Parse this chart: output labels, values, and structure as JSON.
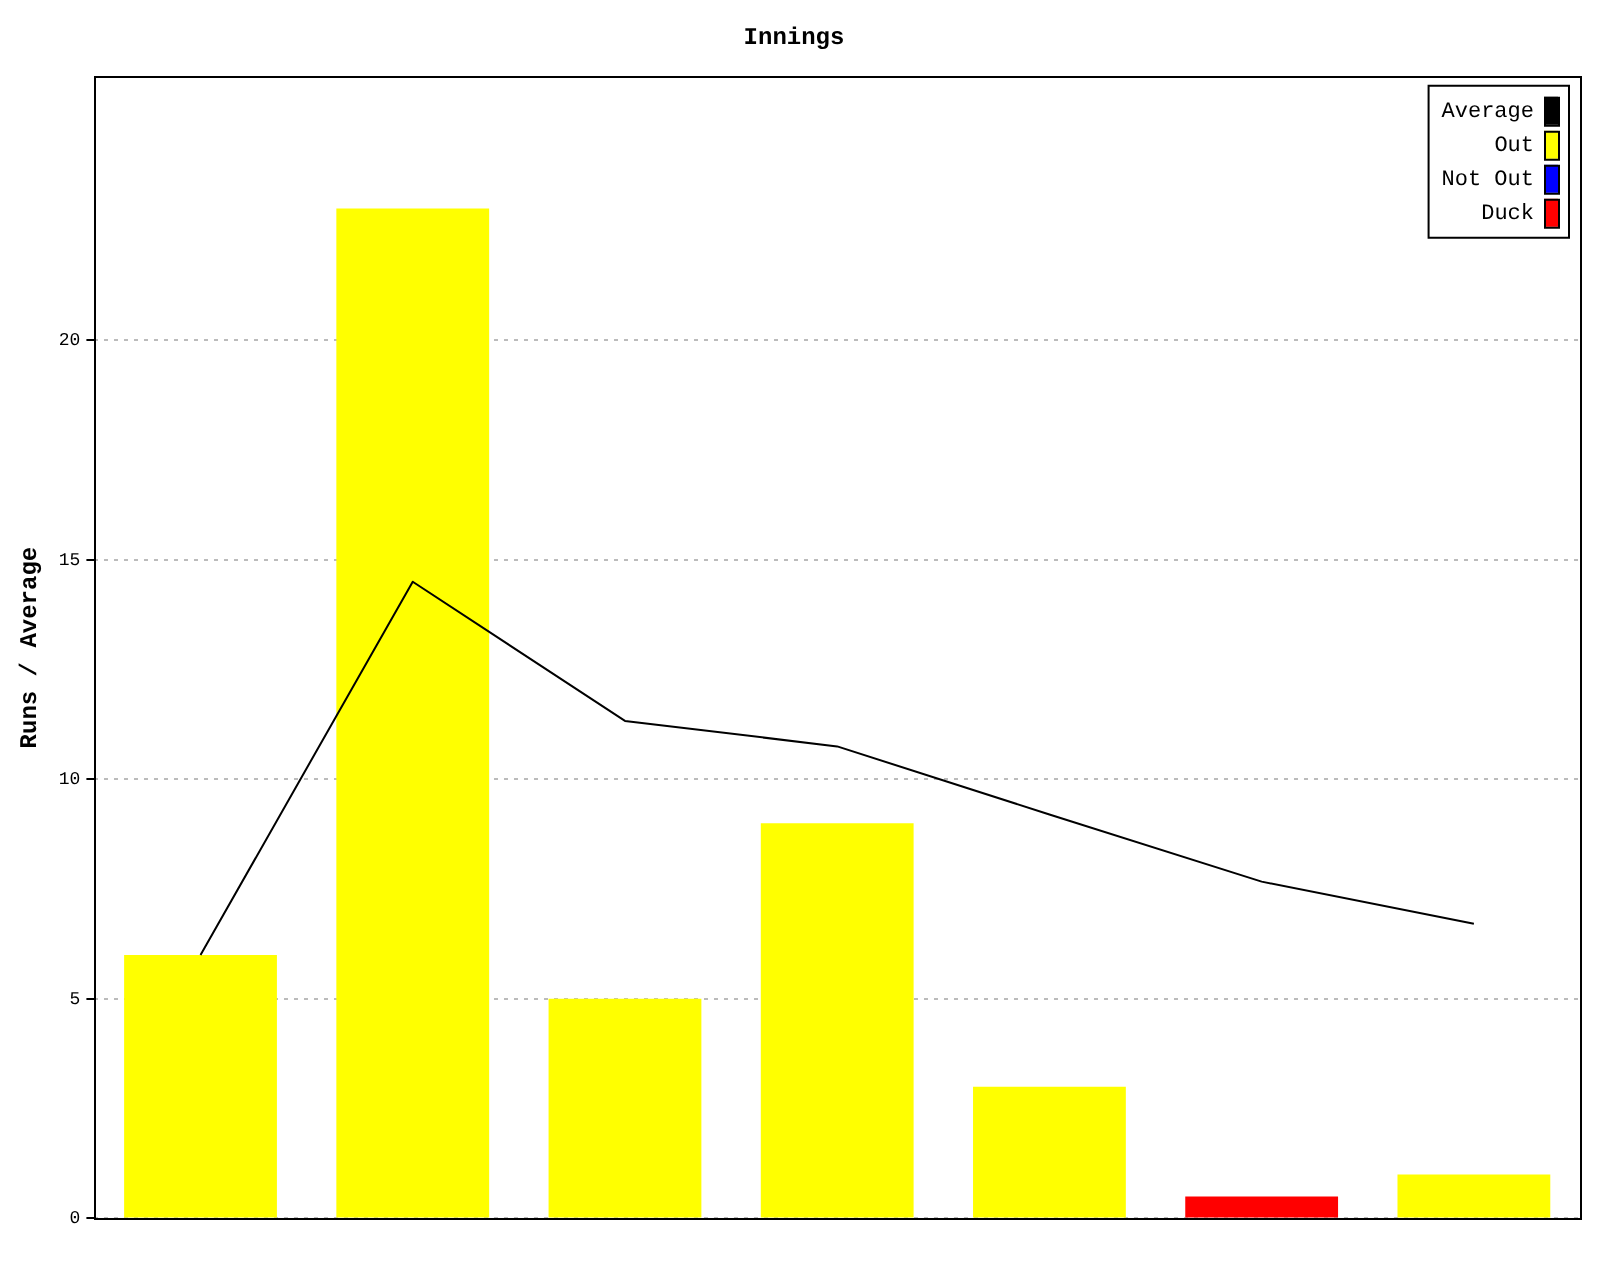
{
  "chart_data": {
    "type": "bar",
    "title": "Innings",
    "ylabel": "Runs / Average",
    "categories": [
      null,
      null,
      null,
      null,
      null,
      null,
      null
    ],
    "stacked": true,
    "ylim": [
      0,
      26
    ],
    "yticks": [
      0,
      5,
      10,
      15,
      20
    ],
    "grid": "y",
    "legend": "top right",
    "marker": "none",
    "series": [
      {
        "name": "Average",
        "type": "line",
        "color": "#000000",
        "values": [
          6,
          14.5,
          11.33,
          10.75,
          9.2,
          7.67,
          6.71
        ]
      },
      {
        "name": "Out",
        "color": "#ffff00",
        "values": [
          6,
          23,
          5,
          9,
          3,
          null,
          1
        ]
      },
      {
        "name": "Not Out",
        "color": "#0000ff",
        "values": [
          null,
          null,
          null,
          null,
          null,
          null,
          null
        ]
      },
      {
        "name": "Duck",
        "color": "#ff0000",
        "values": [
          null,
          null,
          null,
          null,
          null,
          0.5,
          null
        ]
      }
    ]
  }
}
